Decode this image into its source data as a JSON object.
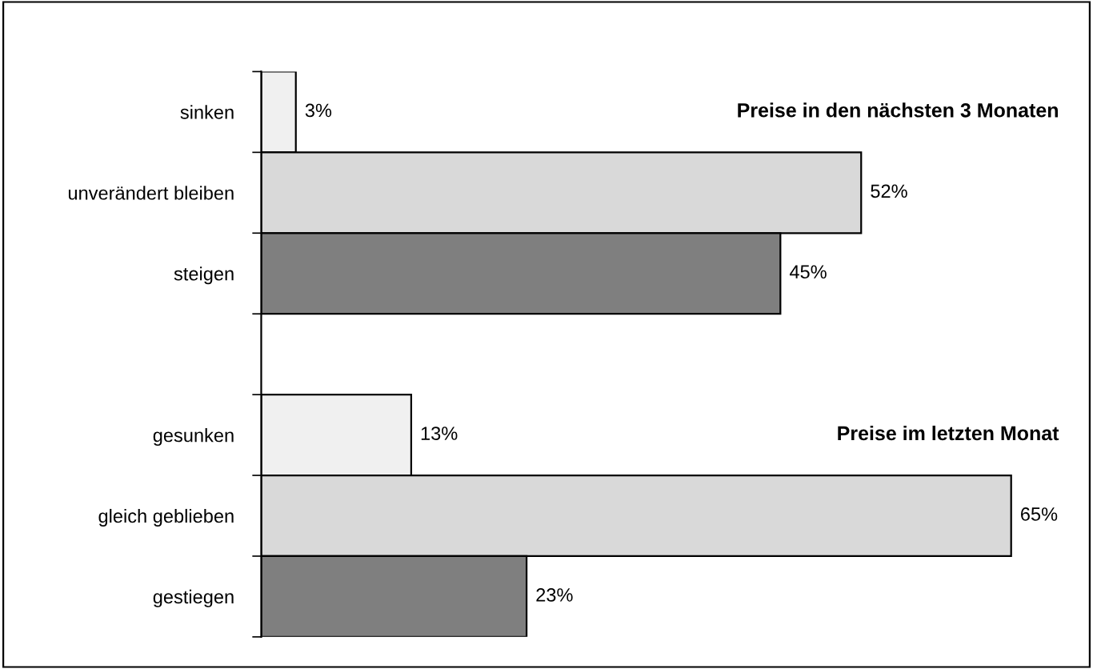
{
  "chart_data": {
    "type": "bar",
    "orientation": "horizontal",
    "categories": [
      "sinken",
      "unverändert bleiben",
      "steigen",
      null,
      "gesunken",
      "gleich geblieben",
      "gestiegen"
    ],
    "values": [
      3,
      52,
      45,
      null,
      13,
      65,
      23
    ],
    "colors": [
      "#f0f0f0",
      "#d9d9d9",
      "#7f7f7f",
      null,
      "#f0f0f0",
      "#d9d9d9",
      "#7f7f7f"
    ],
    "value_labels": [
      "3%",
      "52%",
      "45%",
      null,
      "13%",
      "65%",
      "23%"
    ],
    "annotations": [
      "Preise in den nächsten 3 Monaten",
      "Preise im letzten Monat"
    ],
    "grid": false,
    "legend": false
  }
}
